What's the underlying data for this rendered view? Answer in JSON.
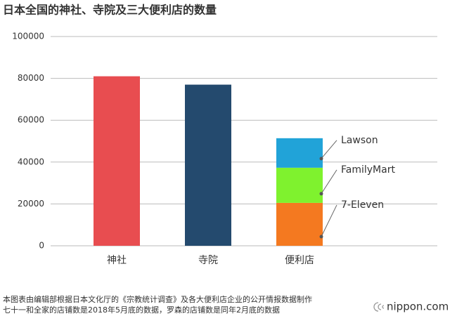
{
  "chart_data": {
    "type": "stacked-bar",
    "title": "日本全国的神社、寺院及三大便利店的数量",
    "categories": [
      "神社",
      "寺院",
      "便利店"
    ],
    "series": [
      {
        "values": [
          81000,
          77000,
          null
        ],
        "colors": [
          "#e84d50",
          "#244a6e",
          null
        ]
      },
      {
        "name": "7-Eleven",
        "color": "#f47920",
        "values": [
          null,
          null,
          20500
        ]
      },
      {
        "name": "FamilyMart",
        "color": "#7ff22e",
        "values": [
          null,
          null,
          16800
        ]
      },
      {
        "name": "Lawson",
        "color": "#21a3d8",
        "values": [
          null,
          null,
          14100
        ]
      }
    ],
    "ylim": [
      0,
      100000
    ],
    "yticks": [
      0,
      20000,
      40000,
      60000,
      80000,
      100000
    ],
    "grid": true,
    "footnote": [
      "本图表由编辑部根据日本文化厅的《宗教统计调查》及各大便利店企业的公开情报数据制作",
      "七十一和全家的店铺数是2018年5月底的数据，罗森的店铺数是同年2月底的数据"
    ],
    "logo": "nippon.com"
  }
}
